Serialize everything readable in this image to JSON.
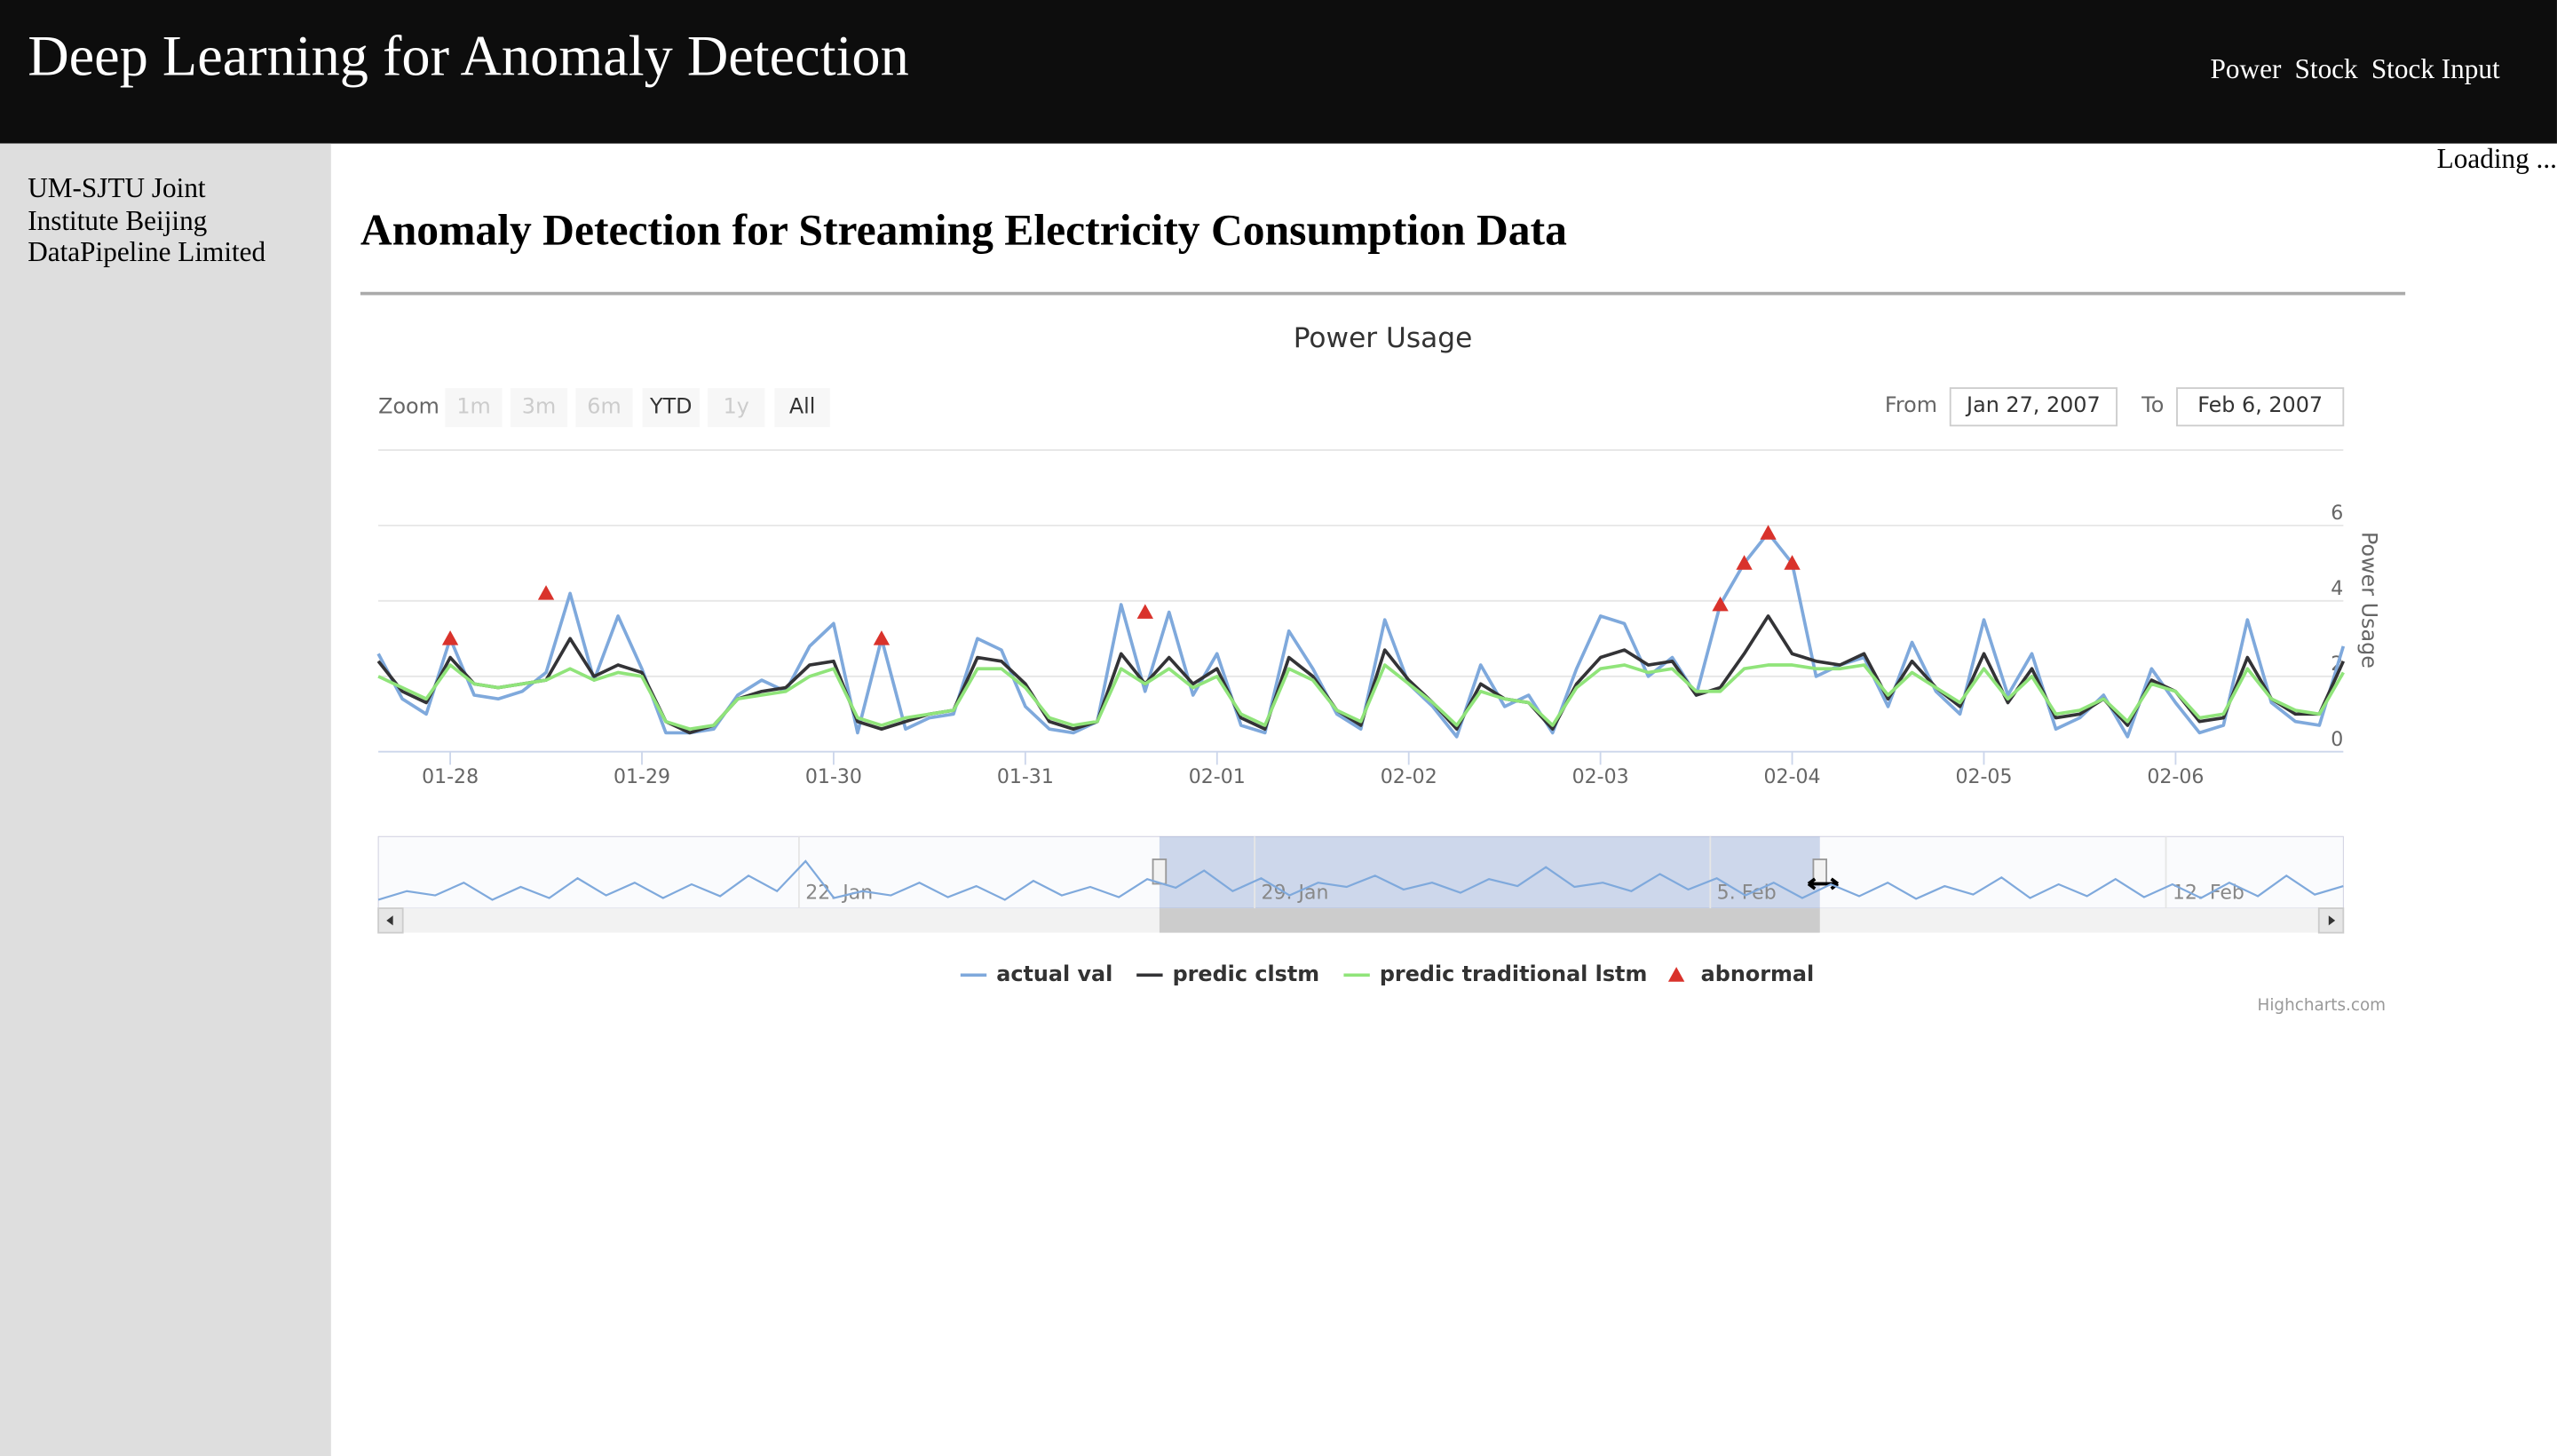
{
  "header": {
    "title": "Deep Learning for Anomaly Detection",
    "nav": [
      "Power",
      "Stock",
      "Stock Input"
    ]
  },
  "loading": "Loading ...",
  "sidebar": {
    "lines": [
      "UM-SJTU Joint Institute Beijing",
      "DataPipeline Limited"
    ]
  },
  "heading": "Anomaly Detection for Streaming Electricity Consumption Data",
  "chart_data": {
    "type": "line",
    "title": "Power Usage",
    "y_axis_title": "Power Usage",
    "credits": "Highcharts.com",
    "range_selector": {
      "label": "Zoom",
      "buttons": [
        "1m",
        "3m",
        "6m",
        "YTD",
        "1y",
        "All"
      ],
      "from_label": "From",
      "from": "Jan 27, 2007",
      "to_label": "To",
      "to": "Feb 6, 2007"
    },
    "categories": [
      null,
      null,
      null,
      "01-28",
      null,
      null,
      null,
      null,
      null,
      null,
      null,
      "01-29",
      null,
      null,
      null,
      null,
      null,
      null,
      null,
      "01-30",
      null,
      null,
      null,
      null,
      null,
      null,
      null,
      "01-31",
      null,
      null,
      null,
      null,
      null,
      null,
      null,
      "02-01",
      null,
      null,
      null,
      null,
      null,
      null,
      null,
      "02-02",
      null,
      null,
      null,
      null,
      null,
      null,
      null,
      "02-03",
      null,
      null,
      null,
      null,
      null,
      null,
      null,
      "02-04",
      null,
      null,
      null,
      null,
      null,
      null,
      null,
      "02-05",
      null,
      null,
      null,
      null,
      null,
      null,
      null,
      "02-06",
      null,
      null,
      null,
      null,
      null,
      null,
      null
    ],
    "ylim": [
      0,
      8
    ],
    "yticks": [
      0,
      2,
      4,
      6
    ],
    "grid": true,
    "series": [
      {
        "name": "actual val",
        "color": "#7fa9dc",
        "values": [
          2.6,
          1.4,
          1.0,
          3.0,
          1.5,
          1.4,
          1.6,
          2.1,
          4.2,
          1.9,
          3.6,
          2.2,
          0.5,
          0.5,
          0.6,
          1.5,
          1.9,
          1.6,
          2.8,
          3.4,
          0.5,
          3.0,
          0.6,
          0.9,
          1.0,
          3.0,
          2.7,
          1.2,
          0.6,
          0.5,
          0.8,
          3.9,
          1.6,
          3.7,
          1.5,
          2.6,
          0.7,
          0.5,
          3.2,
          2.2,
          1.0,
          0.6,
          3.5,
          1.8,
          1.2,
          0.4,
          2.3,
          1.2,
          1.5,
          0.5,
          2.2,
          3.6,
          3.4,
          2.0,
          2.5,
          1.5,
          3.9,
          5.0,
          5.8,
          5.0,
          2.0,
          2.3,
          2.5,
          1.2,
          2.9,
          1.6,
          1.0,
          3.5,
          1.5,
          2.6,
          0.6,
          0.9,
          1.5,
          0.4,
          2.2,
          1.3,
          0.5,
          0.7,
          3.5,
          1.3,
          0.8,
          0.7,
          2.8
        ]
      },
      {
        "name": "predic clstm",
        "color": "#333336",
        "values": [
          2.4,
          1.6,
          1.3,
          2.5,
          1.8,
          1.7,
          1.8,
          1.9,
          3.0,
          2.0,
          2.3,
          2.1,
          0.8,
          0.5,
          0.7,
          1.4,
          1.6,
          1.7,
          2.3,
          2.4,
          0.8,
          0.6,
          0.8,
          1.0,
          1.1,
          2.5,
          2.4,
          1.8,
          0.8,
          0.6,
          0.8,
          2.6,
          1.8,
          2.5,
          1.8,
          2.2,
          0.9,
          0.6,
          2.5,
          2.0,
          1.1,
          0.7,
          2.7,
          1.9,
          1.3,
          0.6,
          1.8,
          1.4,
          1.3,
          0.6,
          1.8,
          2.5,
          2.7,
          2.3,
          2.4,
          1.5,
          1.7,
          2.6,
          3.6,
          2.6,
          2.4,
          2.3,
          2.6,
          1.4,
          2.4,
          1.7,
          1.2,
          2.6,
          1.3,
          2.2,
          0.9,
          1.0,
          1.4,
          0.7,
          1.9,
          1.6,
          0.8,
          0.9,
          2.5,
          1.4,
          1.0,
          1.0,
          2.4
        ]
      },
      {
        "name": "predic traditional lstm",
        "color": "#90e47a",
        "values": [
          2.0,
          1.7,
          1.4,
          2.3,
          1.8,
          1.7,
          1.8,
          1.9,
          2.2,
          1.9,
          2.1,
          2.0,
          0.8,
          0.6,
          0.7,
          1.4,
          1.5,
          1.6,
          2.0,
          2.2,
          0.9,
          0.7,
          0.9,
          1.0,
          1.1,
          2.2,
          2.2,
          1.7,
          0.9,
          0.7,
          0.8,
          2.2,
          1.8,
          2.2,
          1.7,
          2.0,
          1.0,
          0.7,
          2.2,
          1.9,
          1.1,
          0.8,
          2.3,
          1.8,
          1.3,
          0.7,
          1.6,
          1.4,
          1.3,
          0.7,
          1.7,
          2.2,
          2.3,
          2.1,
          2.2,
          1.6,
          1.6,
          2.2,
          2.3,
          2.3,
          2.2,
          2.2,
          2.3,
          1.5,
          2.1,
          1.7,
          1.3,
          2.2,
          1.4,
          2.0,
          1.0,
          1.1,
          1.4,
          0.8,
          1.8,
          1.6,
          0.9,
          1.0,
          2.2,
          1.4,
          1.1,
          1.0,
          2.1
        ]
      },
      {
        "name": "abnormal",
        "color": "#d9322b",
        "type": "scatter",
        "marker": "triangle",
        "values": [
          null,
          null,
          null,
          3.0,
          null,
          null,
          null,
          4.2,
          null,
          null,
          null,
          null,
          null,
          null,
          null,
          null,
          null,
          null,
          null,
          null,
          null,
          3.0,
          null,
          null,
          null,
          null,
          null,
          null,
          null,
          null,
          null,
          null,
          3.7,
          null,
          null,
          null,
          null,
          null,
          null,
          null,
          null,
          null,
          null,
          null,
          null,
          null,
          null,
          null,
          null,
          null,
          null,
          null,
          null,
          null,
          null,
          null,
          3.9,
          5.0,
          5.8,
          5.0,
          null,
          null,
          null,
          null,
          null,
          null,
          null,
          null,
          null,
          null,
          null,
          null,
          null,
          null,
          null,
          null,
          null,
          null,
          null,
          null,
          null,
          null,
          null
        ]
      }
    ],
    "navigator": {
      "categories": [
        null,
        null,
        null,
        null,
        null,
        null,
        null,
        null,
        null,
        null,
        null,
        null,
        null,
        null,
        null,
        "22. Jan",
        null,
        null,
        null,
        null,
        null,
        null,
        null,
        null,
        null,
        null,
        null,
        null,
        null,
        null,
        null,
        "29. Jan",
        null,
        null,
        null,
        null,
        null,
        null,
        null,
        null,
        null,
        null,
        null,
        null,
        null,
        null,
        null,
        "5. Feb",
        null,
        null,
        null,
        null,
        null,
        null,
        null,
        null,
        null,
        null,
        null,
        null,
        null,
        null,
        null,
        "12. Feb",
        null,
        null,
        null,
        null,
        null,
        null
      ],
      "values": [
        1,
        2,
        1.5,
        3,
        1,
        2.5,
        1.2,
        3.5,
        1.5,
        3,
        1.2,
        2.8,
        1.4,
        3.8,
        2,
        5.5,
        1.2,
        2,
        1.5,
        3,
        1.3,
        2.6,
        1,
        3.2,
        1.5,
        2.5,
        1.3,
        3.4,
        2.4,
        4.4,
        2,
        3.5,
        1.5,
        3,
        2.5,
        3.8,
        2.2,
        3,
        1.8,
        3.4,
        2.6,
        4.8,
        2.5,
        3,
        2,
        4,
        2.2,
        3.5,
        1.5,
        3,
        1.2,
        2.8,
        1.4,
        3,
        1.1,
        2.6,
        1.6,
        3.6,
        1.2,
        2.8,
        1.4,
        3.4,
        1.3,
        2.8,
        1.2,
        3,
        1.4,
        3.8,
        1.6,
        2.6
      ]
    }
  }
}
